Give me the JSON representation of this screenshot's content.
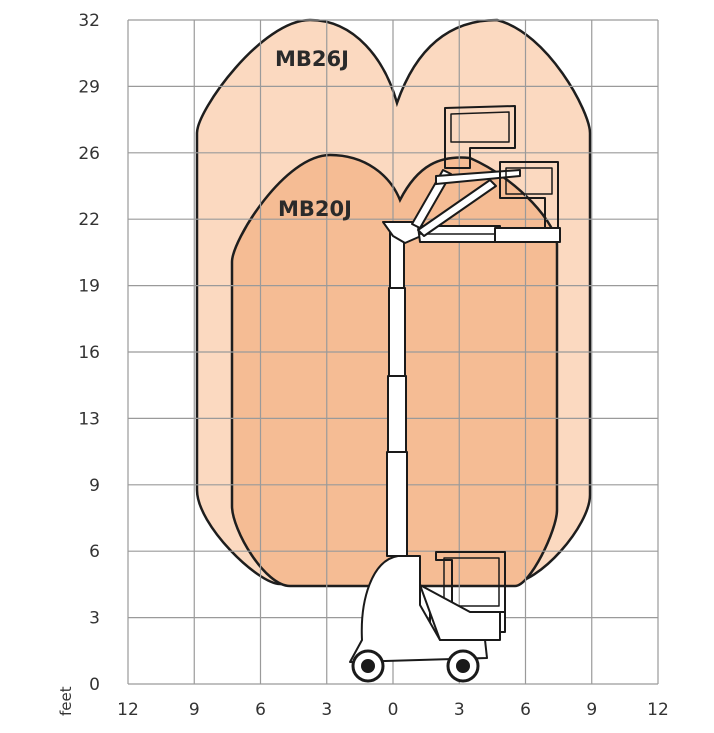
{
  "diagram": {
    "unit_label": "feet",
    "y_ticks": [
      "0",
      "3",
      "6",
      "9",
      "13",
      "16",
      "19",
      "22",
      "26",
      "29",
      "32"
    ],
    "x_ticks": [
      "12",
      "9",
      "6",
      "3",
      "0",
      "3",
      "6",
      "9",
      "12"
    ],
    "envelopes": [
      {
        "name": "MB26J",
        "color": "#fbd9c0"
      },
      {
        "name": "MB20J",
        "color": "#f5bc94"
      }
    ],
    "outline_color": "#1e1e1e",
    "grid_color": "#9a9a9a"
  }
}
